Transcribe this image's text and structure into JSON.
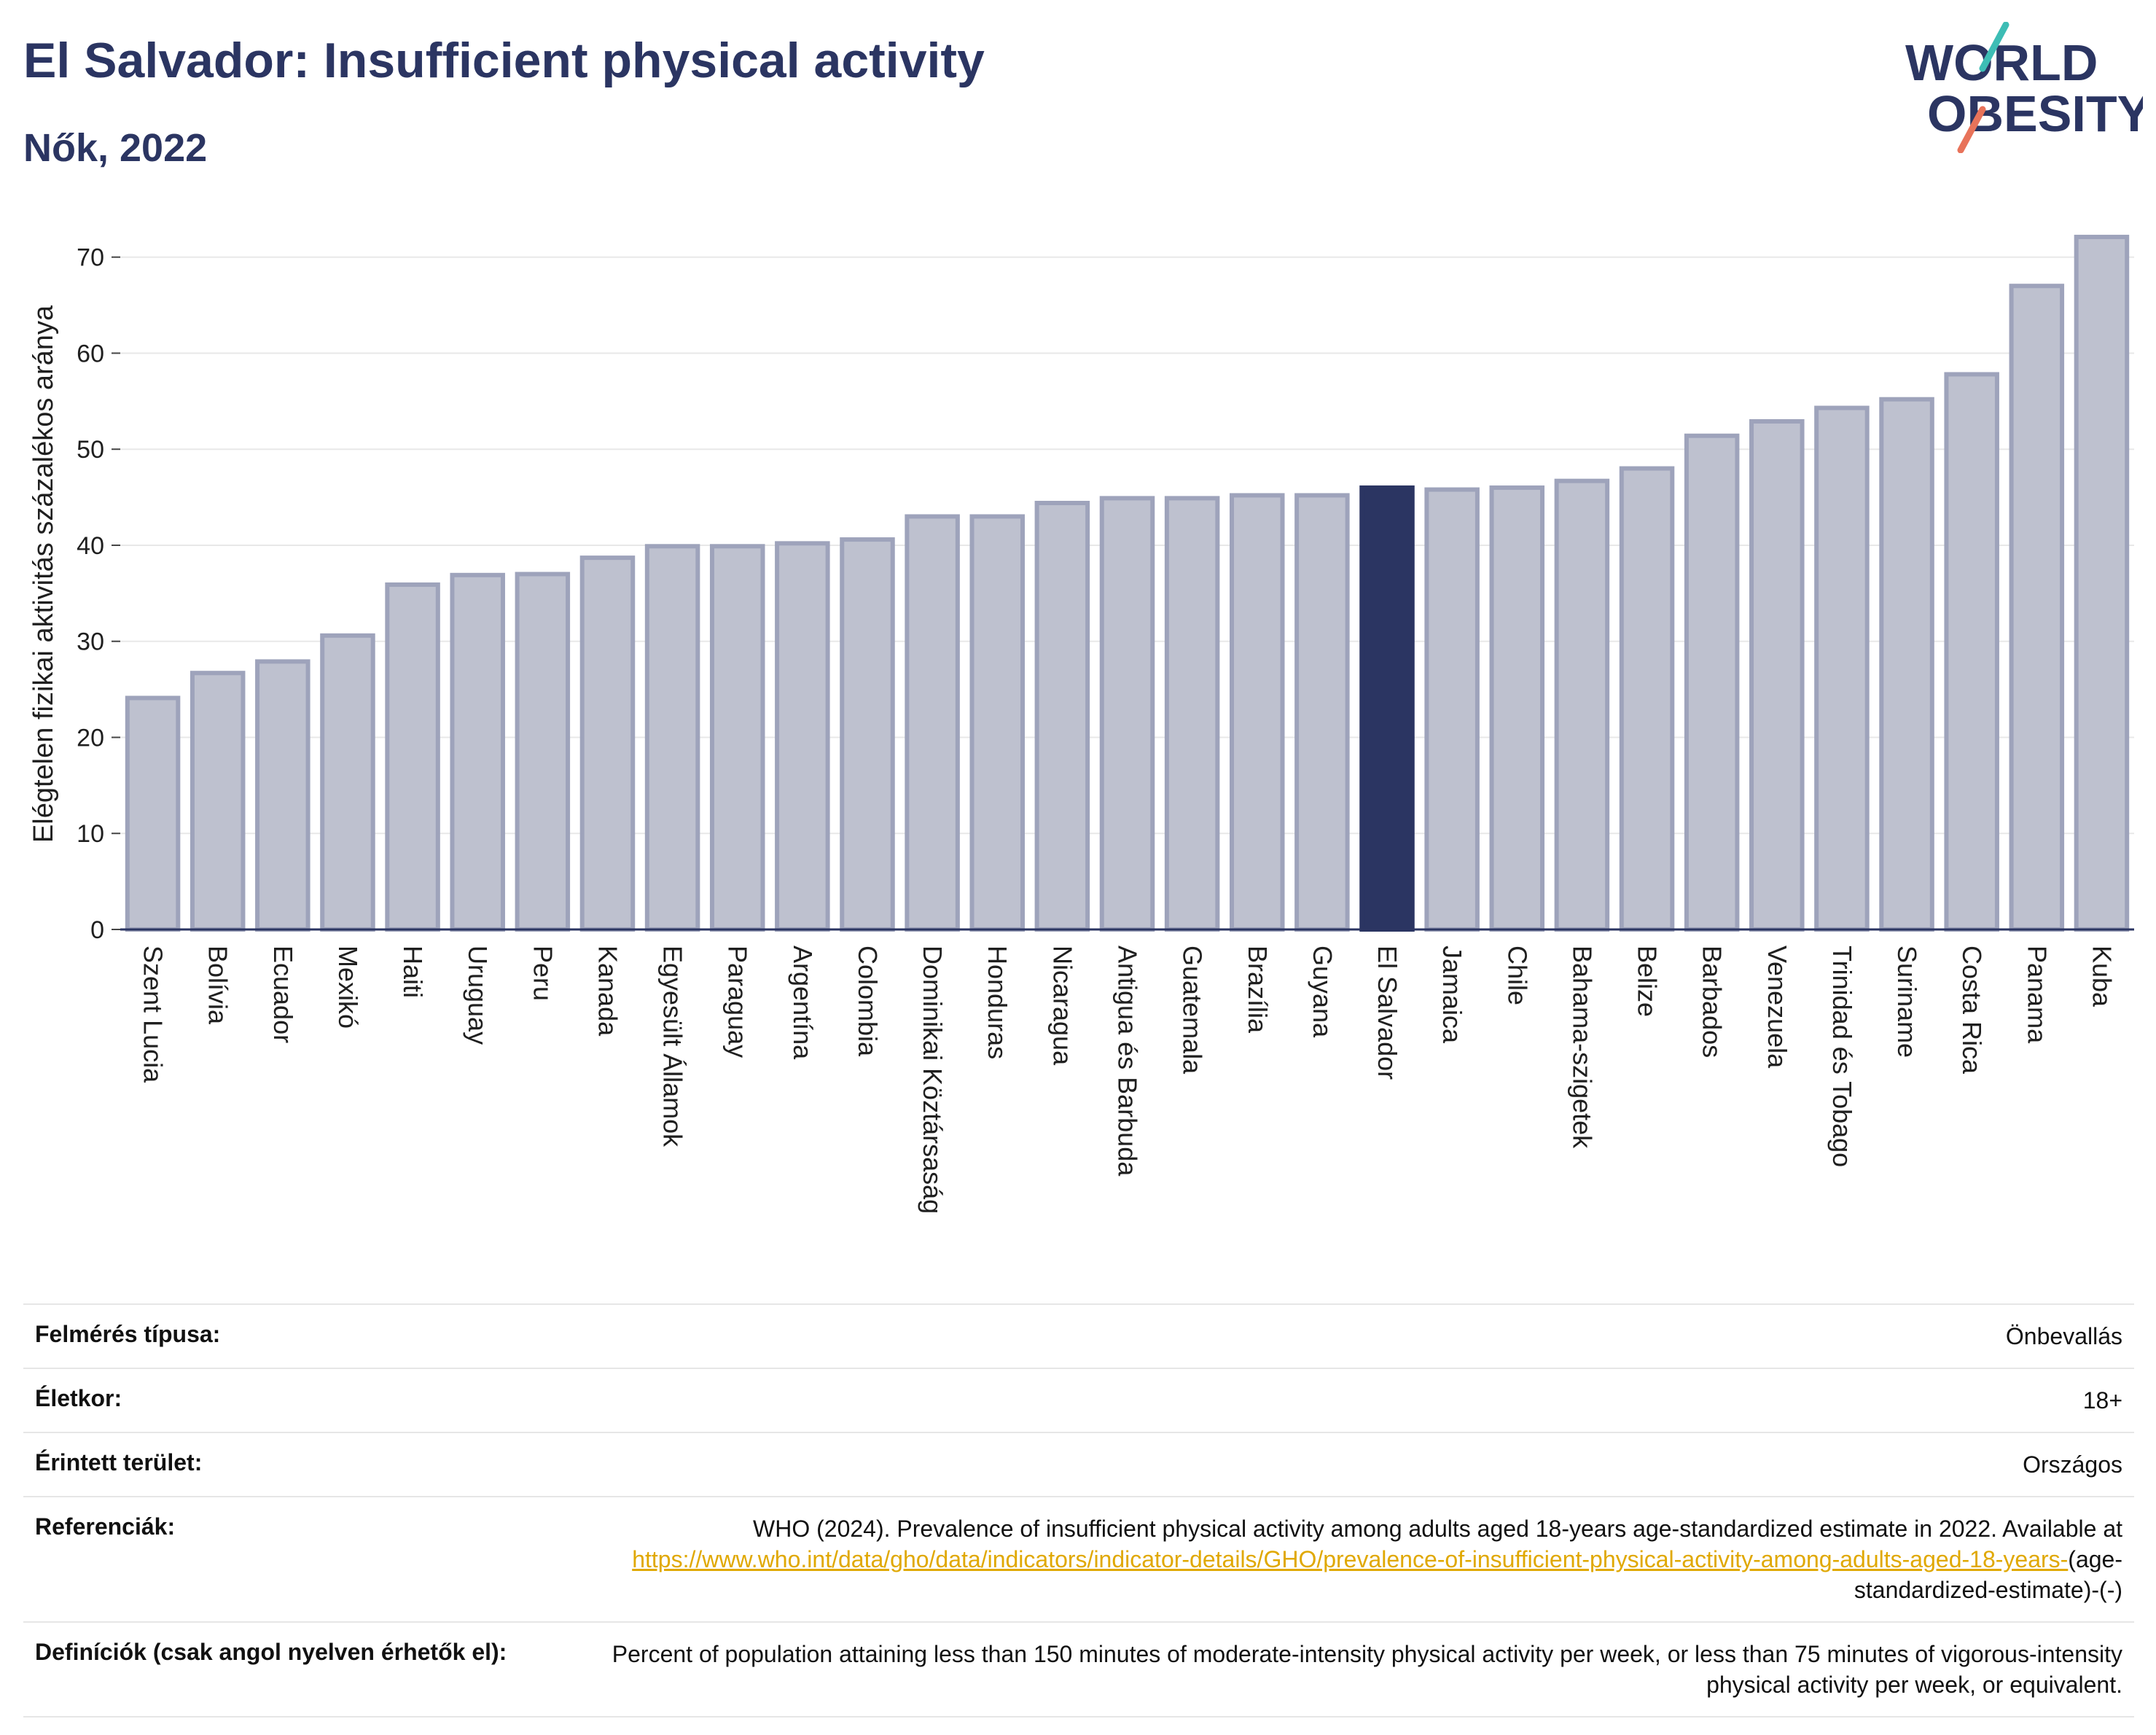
{
  "header": {
    "title": "El Salvador: Insufficient physical activity",
    "subtitle": "Nők, 2022"
  },
  "logo": {
    "line1": "WORLD",
    "line2": "OBESITY",
    "accent_colors": [
      "#3dbdb5",
      "#e8735a"
    ]
  },
  "colors": {
    "bar": "#bec1cf",
    "bar_stroke": "#9ea3bb",
    "highlight": "#2b3562",
    "grid": "#e8e8e8",
    "axis": "#2b3562"
  },
  "chart_data": {
    "type": "bar",
    "ylabel": "Elégtelen fizikai aktivitás százalékos aránya",
    "xlabel": "",
    "ylim": [
      0,
      74
    ],
    "yticks": [
      0,
      10,
      20,
      30,
      40,
      50,
      60,
      70
    ],
    "grid": true,
    "highlight": "El Salvador",
    "categories": [
      "Szent Lucia",
      "Bolívia",
      "Ecuador",
      "Mexikó",
      "Haiti",
      "Uruguay",
      "Peru",
      "Kanada",
      "Egyesült Államok",
      "Paraguay",
      "Argentína",
      "Colombia",
      "Dominikai Köztársaság",
      "Honduras",
      "Nicaragua",
      "Antigua és Barbuda",
      "Guatemala",
      "Brazília",
      "Guyana",
      "El Salvador",
      "Jamaica",
      "Chile",
      "Bahama-szigetek",
      "Belize",
      "Barbados",
      "Venezuela",
      "Trinidad és Tobago",
      "Suriname",
      "Costa Rica",
      "Panama",
      "Kuba"
    ],
    "values": [
      24.1,
      26.7,
      27.9,
      30.6,
      35.9,
      36.9,
      37.0,
      38.7,
      39.9,
      39.9,
      40.2,
      40.6,
      43.0,
      43.0,
      44.4,
      44.9,
      44.9,
      45.2,
      45.2,
      46.0,
      45.8,
      46.0,
      46.7,
      48.0,
      51.4,
      52.9,
      54.3,
      55.2,
      57.8,
      67.0,
      72.1
    ]
  },
  "info": {
    "rows": [
      {
        "label": "Felmérés típusa:",
        "value": "Önbevallás"
      },
      {
        "label": "Életkor:",
        "value": "18+"
      },
      {
        "label": "Érintett terület:",
        "value": "Országos"
      }
    ],
    "references": {
      "label": "Referenciák:",
      "text": "WHO (2024). Prevalence of insufficient physical activity among adults aged 18-years age-standardized estimate in 2022. Available at",
      "link": "https://www.who.int/data/gho/data/indicators/indicator-details/GHO/prevalence-of-insufficient-physical-activity-among-adults-aged-18-years-",
      "suffix": "(age-standardized-estimate)-(-)"
    },
    "definitions": {
      "label": "Definíciók (csak angol nyelven érhetők el):",
      "text": "Percent of population attaining less than 150 minutes of moderate-intensity physical activity per week, or less than 75 minutes of vigorous-intensity physical activity per week, or equivalent."
    }
  }
}
